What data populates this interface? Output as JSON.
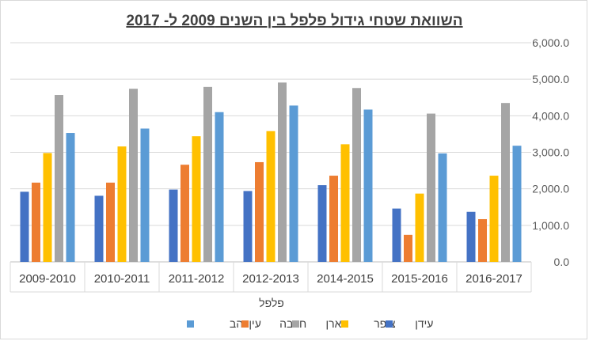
{
  "chart_data": {
    "type": "bar",
    "title": "השוואת שטחי גידול פלפל בין השנים 2009 ל- 2017",
    "xlabel": "פלפל",
    "ylabel": "",
    "ylim": [
      0,
      6000
    ],
    "yticks": [
      "0.0",
      "1,000.0",
      "2,000.0",
      "3,000.0",
      "4,000.0",
      "5,000.0",
      "6,000.0"
    ],
    "y_axis_side": "right",
    "grid": true,
    "legend_position": "bottom",
    "categories": [
      "2009-2010",
      "2010-2011",
      "2011-2012",
      "2012-2013",
      "2014-2015",
      "2015-2016",
      "2016-2017"
    ],
    "series": [
      {
        "name": "עידן",
        "color": "#4472c4",
        "values": [
          1920,
          1810,
          1980,
          1940,
          2100,
          1460,
          1370
        ]
      },
      {
        "name": "חצבה",
        "color": "#ed7d31",
        "values": [
          2170,
          2170,
          2660,
          2730,
          2360,
          740,
          1170
        ]
      },
      {
        "name": "צופר",
        "color": "#ffc000",
        "values": [
          2980,
          3160,
          3440,
          3580,
          3220,
          1870,
          2360
        ]
      },
      {
        "name": "פארן",
        "color": "#a5a5a5",
        "values": [
          4570,
          4740,
          4790,
          4910,
          4760,
          4060,
          4350
        ]
      },
      {
        "name": "עין יהב",
        "color": "#5b9bd5",
        "values": [
          3530,
          3650,
          4100,
          4280,
          4170,
          2970,
          3180
        ]
      }
    ],
    "legend_order": [
      "עין יהב",
      "חצבה",
      "פארן",
      "צופר",
      "עידן"
    ]
  }
}
